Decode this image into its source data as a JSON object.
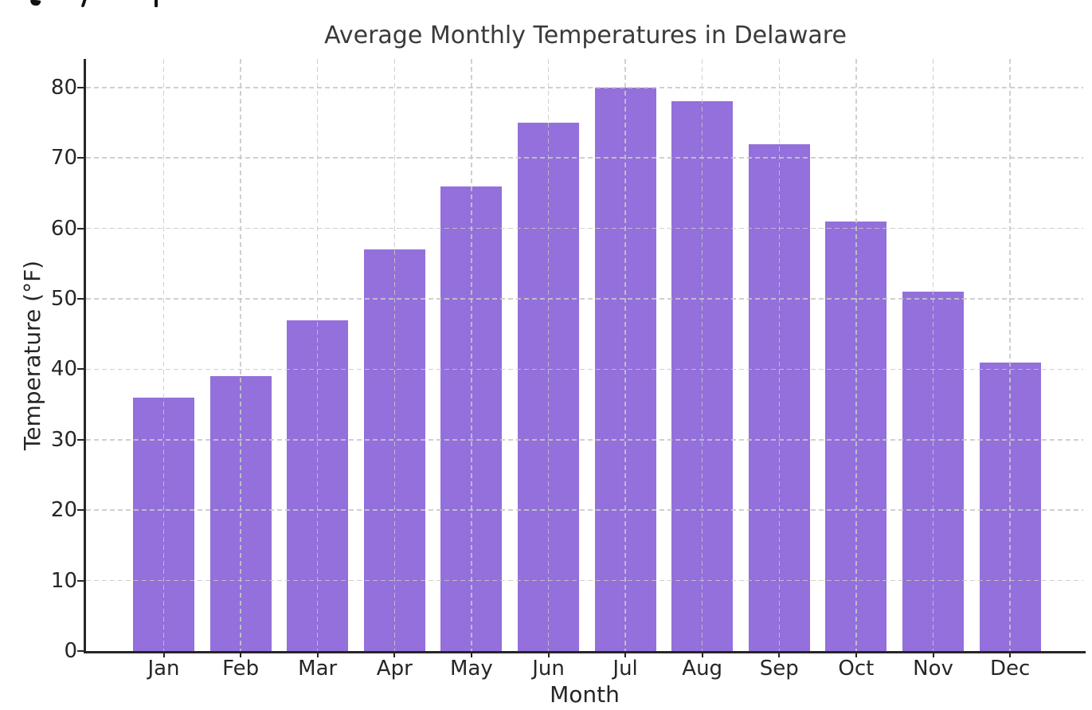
{
  "clipped_top_text": {
    "readable": false,
    "fragments": [
      {
        "x": 38,
        "shape": "g"
      },
      {
        "x": 103,
        "shape": "y"
      },
      {
        "x": 194,
        "shape": "p"
      }
    ]
  },
  "chart_data": {
    "type": "bar",
    "title": "Average Monthly Temperatures in Delaware",
    "xlabel": "Month",
    "ylabel": "Temperature (°F)",
    "categories": [
      "Jan",
      "Feb",
      "Mar",
      "Apr",
      "May",
      "Jun",
      "Jul",
      "Aug",
      "Sep",
      "Oct",
      "Nov",
      "Dec"
    ],
    "values": [
      36,
      39,
      47,
      57,
      66,
      75,
      80,
      78,
      72,
      61,
      51,
      41
    ],
    "yticks": [
      0,
      10,
      20,
      30,
      40,
      50,
      60,
      70,
      80
    ],
    "ylim": [
      0,
      84
    ],
    "grid": {
      "visible": true,
      "style": "dashed",
      "horizontal": true,
      "vertical": true
    },
    "legend": "none",
    "colors": {
      "bar": "#9370DB",
      "grid": "#c8c8c8",
      "spine": "#262626",
      "title_text": "#3a3a3a",
      "tick_text": "#262626"
    }
  }
}
